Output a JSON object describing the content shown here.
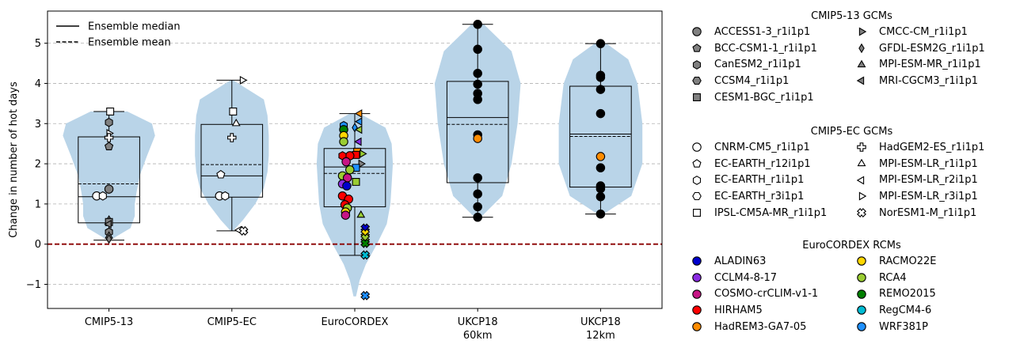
{
  "chart_data": {
    "type": "violin-box-scatter",
    "ylabel": "Change in number of hot days",
    "ylim": [
      -1.6,
      5.8
    ],
    "yticks": [
      -1,
      0,
      1,
      2,
      3,
      4,
      5
    ],
    "ytick_labels": [
      "−1",
      "0",
      "1",
      "2",
      "3",
      "4",
      "5"
    ],
    "grid": "horizontal dashed",
    "zero_line_color": "#8b0000",
    "violin_color": "#b9d4e8",
    "categories": [
      {
        "label": "CMIP5-13",
        "label2": ""
      },
      {
        "label": "CMIP5-EC",
        "label2": ""
      },
      {
        "label": "EuroCORDEX",
        "label2": ""
      },
      {
        "label": "UKCP18",
        "label2": "60km"
      },
      {
        "label": "UKCP18",
        "label2": "12km"
      }
    ],
    "boxes": [
      {
        "q1": 0.53,
        "q3": 2.67,
        "median": 1.18,
        "mean": 1.5,
        "whisker_low": 0.1,
        "whisker_high": 3.3
      },
      {
        "q1": 1.17,
        "q3": 2.98,
        "median": 1.7,
        "mean": 1.98,
        "whisker_low": 0.33,
        "whisker_high": 4.08
      },
      {
        "q1": 0.93,
        "q3": 2.38,
        "median": 1.92,
        "mean": 1.76,
        "whisker_low": -0.28,
        "whisker_high": 3.25
      },
      {
        "q1": 1.53,
        "q3": 4.05,
        "median": 3.15,
        "mean": 2.98,
        "whisker_low": 0.67,
        "whisker_high": 5.47
      },
      {
        "q1": 1.42,
        "q3": 3.93,
        "median": 2.74,
        "mean": 2.68,
        "whisker_low": 0.75,
        "whisker_high": 4.99
      }
    ],
    "violins": [
      {
        "profile": [
          [
            0.1,
            0.02
          ],
          [
            0.4,
            0.35
          ],
          [
            0.7,
            0.42
          ],
          [
            1.0,
            0.42
          ],
          [
            1.3,
            0.45
          ],
          [
            1.7,
            0.5
          ],
          [
            2.2,
            0.62
          ],
          [
            2.7,
            0.75
          ],
          [
            3.0,
            0.7
          ],
          [
            3.3,
            0.3
          ]
        ]
      },
      {
        "profile": [
          [
            0.33,
            0.02
          ],
          [
            0.6,
            0.18
          ],
          [
            1.0,
            0.38
          ],
          [
            1.4,
            0.52
          ],
          [
            1.8,
            0.58
          ],
          [
            2.2,
            0.6
          ],
          [
            2.7,
            0.6
          ],
          [
            3.2,
            0.58
          ],
          [
            3.6,
            0.52
          ],
          [
            4.08,
            0.02
          ]
        ]
      },
      {
        "profile": [
          [
            -1.3,
            0.02
          ],
          [
            -0.9,
            0.08
          ],
          [
            -0.5,
            0.18
          ],
          [
            0.0,
            0.36
          ],
          [
            0.5,
            0.52
          ],
          [
            1.0,
            0.58
          ],
          [
            1.5,
            0.6
          ],
          [
            2.0,
            0.62
          ],
          [
            2.5,
            0.6
          ],
          [
            2.9,
            0.5
          ],
          [
            3.25,
            0.08
          ]
        ]
      },
      {
        "profile": [
          [
            0.67,
            0.05
          ],
          [
            1.2,
            0.4
          ],
          [
            2.0,
            0.55
          ],
          [
            3.0,
            0.65
          ],
          [
            4.0,
            0.7
          ],
          [
            4.8,
            0.55
          ],
          [
            5.47,
            0.1
          ]
        ]
      },
      {
        "profile": [
          [
            0.75,
            0.05
          ],
          [
            1.2,
            0.5
          ],
          [
            2.0,
            0.68
          ],
          [
            3.0,
            0.68
          ],
          [
            4.0,
            0.6
          ],
          [
            4.6,
            0.45
          ],
          [
            4.99,
            0.1
          ]
        ]
      }
    ],
    "points": [
      {
        "group": 0,
        "y": 3.3,
        "dx": 0.02,
        "marker": "square",
        "color": "#ffffff"
      },
      {
        "group": 0,
        "y": 3.03,
        "dx": 0.0,
        "marker": "hexagon",
        "color": "#808080"
      },
      {
        "group": 0,
        "y": 2.76,
        "dx": 0.0,
        "marker": "triangle-right",
        "color": "#ffffff"
      },
      {
        "group": 0,
        "y": 2.65,
        "dx": 0.0,
        "marker": "plus",
        "color": "#ffffff"
      },
      {
        "group": 0,
        "y": 2.43,
        "dx": 0.0,
        "marker": "pentagon",
        "color": "#808080"
      },
      {
        "group": 0,
        "y": 1.37,
        "dx": 0.0,
        "marker": "circle",
        "color": "#808080"
      },
      {
        "group": 0,
        "y": 1.2,
        "dx": -0.2,
        "marker": "circle",
        "color": "#ffffff"
      },
      {
        "group": 0,
        "y": 1.2,
        "dx": -0.1,
        "marker": "hexagon",
        "color": "#ffffff"
      },
      {
        "group": 0,
        "y": 0.6,
        "dx": 0.0,
        "marker": "diamond",
        "color": "#808080"
      },
      {
        "group": 0,
        "y": 0.55,
        "dx": 0.0,
        "marker": "square",
        "color": "#808080"
      },
      {
        "group": 0,
        "y": 0.5,
        "dx": 0.0,
        "marker": "triangle-left",
        "color": "#808080"
      },
      {
        "group": 0,
        "y": 0.3,
        "dx": 0.0,
        "marker": "hexagon",
        "color": "#808080"
      },
      {
        "group": 0,
        "y": 0.2,
        "dx": 0.0,
        "marker": "triangle-up",
        "color": "#808080"
      },
      {
        "group": 0,
        "y": 0.13,
        "dx": 0.0,
        "marker": "diamond",
        "color": "#808080"
      },
      {
        "group": 1,
        "y": 4.08,
        "dx": 0.17,
        "marker": "triangle-right",
        "color": "#ffffff"
      },
      {
        "group": 1,
        "y": 3.3,
        "dx": 0.02,
        "marker": "square",
        "color": "#ffffff"
      },
      {
        "group": 1,
        "y": 3.0,
        "dx": 0.07,
        "marker": "triangle-up",
        "color": "#ffffff"
      },
      {
        "group": 1,
        "y": 2.65,
        "dx": 0.0,
        "marker": "plus",
        "color": "#ffffff"
      },
      {
        "group": 1,
        "y": 1.73,
        "dx": -0.18,
        "marker": "pentagon",
        "color": "#ffffff"
      },
      {
        "group": 1,
        "y": 1.2,
        "dx": -0.2,
        "marker": "circle",
        "color": "#ffffff"
      },
      {
        "group": 1,
        "y": 1.2,
        "dx": -0.11,
        "marker": "hexagon",
        "color": "#ffffff"
      },
      {
        "group": 1,
        "y": 0.35,
        "dx": 0.12,
        "marker": "triangle-left",
        "color": "#ffffff"
      },
      {
        "group": 1,
        "y": 0.33,
        "dx": 0.19,
        "marker": "cross",
        "color": "#ffffff"
      },
      {
        "group": 2,
        "y": 3.25,
        "dx": 0.08,
        "marker": "triangle-left",
        "color": "#ff8c00"
      },
      {
        "group": 2,
        "y": 3.05,
        "dx": 0.08,
        "marker": "triangle-left",
        "color": "#1e90ff"
      },
      {
        "group": 2,
        "y": 2.9,
        "dx": 0.0,
        "marker": "diamond",
        "color": "#1e90ff"
      },
      {
        "group": 2,
        "y": 2.95,
        "dx": -0.18,
        "marker": "hexagon",
        "color": "#1e90ff"
      },
      {
        "group": 2,
        "y": 2.85,
        "dx": -0.18,
        "marker": "circle",
        "color": "#008000"
      },
      {
        "group": 2,
        "y": 2.85,
        "dx": 0.08,
        "marker": "triangle-left",
        "color": "#9acd32"
      },
      {
        "group": 2,
        "y": 2.7,
        "dx": -0.18,
        "marker": "circle",
        "color": "#ffd700"
      },
      {
        "group": 2,
        "y": 2.55,
        "dx": -0.18,
        "marker": "circle",
        "color": "#9acd32"
      },
      {
        "group": 2,
        "y": 2.55,
        "dx": 0.07,
        "marker": "triangle-left",
        "color": "#8a2be2"
      },
      {
        "group": 2,
        "y": 2.3,
        "dx": 0.04,
        "marker": "square",
        "color": "#ff8c00"
      },
      {
        "group": 2,
        "y": 2.25,
        "dx": 0.12,
        "marker": "triangle-right",
        "color": "#9acd32"
      },
      {
        "group": 2,
        "y": 2.22,
        "dx": 0.02,
        "marker": "square",
        "color": "#ff0000"
      },
      {
        "group": 2,
        "y": 2.2,
        "dx": -0.08,
        "marker": "circle",
        "color": "#ff0000"
      },
      {
        "group": 2,
        "y": 2.2,
        "dx": -0.2,
        "marker": "hexagon",
        "color": "#ff0000"
      },
      {
        "group": 2,
        "y": 2.05,
        "dx": -0.14,
        "marker": "circle",
        "color": "#c71585"
      },
      {
        "group": 2,
        "y": 2.0,
        "dx": 0.1,
        "marker": "triangle-right",
        "color": "#808080"
      },
      {
        "group": 2,
        "y": 1.9,
        "dx": 0.02,
        "marker": "square",
        "color": "#1e90ff"
      },
      {
        "group": 2,
        "y": 1.85,
        "dx": -0.08,
        "marker": "circle",
        "color": "#9acd32"
      },
      {
        "group": 2,
        "y": 1.7,
        "dx": -0.2,
        "marker": "circle",
        "color": "#9acd32"
      },
      {
        "group": 2,
        "y": 1.65,
        "dx": -0.12,
        "marker": "circle",
        "color": "#c71585"
      },
      {
        "group": 2,
        "y": 1.55,
        "dx": 0.02,
        "marker": "square",
        "color": "#9acd32"
      },
      {
        "group": 2,
        "y": 1.5,
        "dx": -0.2,
        "marker": "circle",
        "color": "#8a2be2"
      },
      {
        "group": 2,
        "y": 1.45,
        "dx": -0.13,
        "marker": "circle",
        "color": "#0000cd"
      },
      {
        "group": 2,
        "y": 1.2,
        "dx": -0.2,
        "marker": "circle",
        "color": "#ff0000"
      },
      {
        "group": 2,
        "y": 1.12,
        "dx": -0.1,
        "marker": "circle",
        "color": "#ff0000"
      },
      {
        "group": 2,
        "y": 0.98,
        "dx": -0.16,
        "marker": "circle",
        "color": "#ff0000"
      },
      {
        "group": 2,
        "y": 0.9,
        "dx": -0.12,
        "marker": "circle",
        "color": "#9acd32"
      },
      {
        "group": 2,
        "y": 0.8,
        "dx": -0.15,
        "marker": "circle",
        "color": "#ffd700"
      },
      {
        "group": 2,
        "y": 0.72,
        "dx": 0.1,
        "marker": "triangle-up",
        "color": "#9acd32"
      },
      {
        "group": 2,
        "y": 0.72,
        "dx": -0.15,
        "marker": "circle",
        "color": "#c71585"
      },
      {
        "group": 2,
        "y": 0.4,
        "dx": 0.17,
        "marker": "cross",
        "color": "#0000cd"
      },
      {
        "group": 2,
        "y": 0.27,
        "dx": 0.17,
        "marker": "cross",
        "color": "#ffd700"
      },
      {
        "group": 2,
        "y": 0.15,
        "dx": 0.17,
        "marker": "cross",
        "color": "#9acd32"
      },
      {
        "group": 2,
        "y": 0.02,
        "dx": 0.17,
        "marker": "cross",
        "color": "#008000"
      },
      {
        "group": 2,
        "y": -0.27,
        "dx": 0.17,
        "marker": "cross",
        "color": "#00bcd4"
      },
      {
        "group": 2,
        "y": -1.28,
        "dx": 0.17,
        "marker": "cross",
        "color": "#1e90ff"
      },
      {
        "group": 3,
        "y": 5.47,
        "dx": 0.0,
        "marker": "circle",
        "color": "#000000"
      },
      {
        "group": 3,
        "y": 4.85,
        "dx": 0.0,
        "marker": "circle",
        "color": "#000000"
      },
      {
        "group": 3,
        "y": 4.25,
        "dx": 0.0,
        "marker": "circle",
        "color": "#000000"
      },
      {
        "group": 3,
        "y": 3.98,
        "dx": 0.0,
        "marker": "circle",
        "color": "#000000"
      },
      {
        "group": 3,
        "y": 3.75,
        "dx": 0.0,
        "marker": "circle",
        "color": "#000000"
      },
      {
        "group": 3,
        "y": 3.6,
        "dx": 0.0,
        "marker": "circle",
        "color": "#000000"
      },
      {
        "group": 3,
        "y": 2.72,
        "dx": 0.0,
        "marker": "circle",
        "color": "#000000"
      },
      {
        "group": 3,
        "y": 2.63,
        "dx": 0.0,
        "marker": "circle",
        "color": "#ff8c00"
      },
      {
        "group": 3,
        "y": 1.65,
        "dx": 0.0,
        "marker": "circle",
        "color": "#000000"
      },
      {
        "group": 3,
        "y": 1.25,
        "dx": 0.0,
        "marker": "circle",
        "color": "#000000"
      },
      {
        "group": 3,
        "y": 0.93,
        "dx": 0.0,
        "marker": "circle",
        "color": "#000000"
      },
      {
        "group": 3,
        "y": 0.67,
        "dx": 0.0,
        "marker": "circle",
        "color": "#000000"
      },
      {
        "group": 4,
        "y": 4.99,
        "dx": 0.0,
        "marker": "circle",
        "color": "#000000"
      },
      {
        "group": 4,
        "y": 4.2,
        "dx": 0.0,
        "marker": "circle",
        "color": "#000000"
      },
      {
        "group": 4,
        "y": 4.15,
        "dx": 0.0,
        "marker": "circle",
        "color": "#000000"
      },
      {
        "group": 4,
        "y": 3.85,
        "dx": 0.0,
        "marker": "circle",
        "color": "#000000"
      },
      {
        "group": 4,
        "y": 3.25,
        "dx": 0.0,
        "marker": "circle",
        "color": "#000000"
      },
      {
        "group": 4,
        "y": 2.18,
        "dx": 0.0,
        "marker": "circle",
        "color": "#ff8c00"
      },
      {
        "group": 4,
        "y": 1.9,
        "dx": 0.0,
        "marker": "circle",
        "color": "#000000"
      },
      {
        "group": 4,
        "y": 1.45,
        "dx": 0.0,
        "marker": "circle",
        "color": "#000000"
      },
      {
        "group": 4,
        "y": 1.38,
        "dx": 0.0,
        "marker": "circle",
        "color": "#000000"
      },
      {
        "group": 4,
        "y": 1.18,
        "dx": 0.0,
        "marker": "circle",
        "color": "#000000"
      },
      {
        "group": 4,
        "y": 0.75,
        "dx": 0.0,
        "marker": "circle",
        "color": "#000000"
      }
    ],
    "line_legend": {
      "placement": "top-left",
      "entries": [
        {
          "label": "Ensemble median",
          "style": "solid"
        },
        {
          "label": "Ensemble mean",
          "style": "dashed"
        }
      ]
    }
  },
  "legends": [
    {
      "id": "gcm13",
      "title": "CMIP5-13 GCMs",
      "items": [
        {
          "label": "ACCESS1-3_r1i1p1",
          "marker": "circle",
          "color": "#808080"
        },
        {
          "label": "CMCC-CM_r1i1p1",
          "marker": "triangle-right",
          "color": "#808080"
        },
        {
          "label": "BCC-CSM1-1_r1i1p1",
          "marker": "pentagon",
          "color": "#808080"
        },
        {
          "label": "GFDL-ESM2G_r1i1p1",
          "marker": "diamond",
          "color": "#808080"
        },
        {
          "label": "CanESM2_r1i1p1",
          "marker": "hexagon",
          "color": "#808080"
        },
        {
          "label": "MPI-ESM-MR_r1i1p1",
          "marker": "triangle-up",
          "color": "#808080"
        },
        {
          "label": "CCSM4_r1i1p1",
          "marker": "hexagon2",
          "color": "#808080"
        },
        {
          "label": "MRI-CGCM3_r1i1p1",
          "marker": "triangle-left",
          "color": "#808080"
        },
        {
          "label": "CESM1-BGC_r1i1p1",
          "marker": "square",
          "color": "#808080"
        }
      ]
    },
    {
      "id": "gcmec",
      "title": "CMIP5-EC GCMs",
      "items": [
        {
          "label": "CNRM-CM5_r1i1p1",
          "marker": "circle",
          "color": "#ffffff"
        },
        {
          "label": "HadGEM2-ES_r1i1p1",
          "marker": "plus",
          "color": "#ffffff"
        },
        {
          "label": "EC-EARTH_r12i1p1",
          "marker": "pentagon",
          "color": "#ffffff"
        },
        {
          "label": "MPI-ESM-LR_r1i1p1",
          "marker": "triangle-up",
          "color": "#ffffff"
        },
        {
          "label": "EC-EARTH_r1i1p1",
          "marker": "hexagon",
          "color": "#ffffff"
        },
        {
          "label": "MPI-ESM-LR_r2i1p1",
          "marker": "triangle-left",
          "color": "#ffffff"
        },
        {
          "label": "EC-EARTH_r3i1p1",
          "marker": "hexagon2",
          "color": "#ffffff"
        },
        {
          "label": "MPI-ESM-LR_r3i1p1",
          "marker": "triangle-right",
          "color": "#ffffff"
        },
        {
          "label": "IPSL-CM5A-MR_r1i1p1",
          "marker": "square",
          "color": "#ffffff"
        },
        {
          "label": "NorESM1-M_r1i1p1",
          "marker": "cross",
          "color": "#ffffff"
        }
      ]
    },
    {
      "id": "rcm",
      "title": "EuroCORDEX RCMs",
      "items": [
        {
          "label": "ALADIN63",
          "marker": "circle",
          "color": "#0000cd"
        },
        {
          "label": "RACMO22E",
          "marker": "circle",
          "color": "#ffd700"
        },
        {
          "label": "CCLM4-8-17",
          "marker": "circle",
          "color": "#8a2be2"
        },
        {
          "label": "RCA4",
          "marker": "circle",
          "color": "#9acd32"
        },
        {
          "label": "COSMO-crCLIM-v1-1",
          "marker": "circle",
          "color": "#c71585"
        },
        {
          "label": "REMO2015",
          "marker": "circle",
          "color": "#008000"
        },
        {
          "label": "HIRHAM5",
          "marker": "circle",
          "color": "#ff0000"
        },
        {
          "label": "RegCM4-6",
          "marker": "circle",
          "color": "#00bcd4"
        },
        {
          "label": "HadREM3-GA7-05",
          "marker": "circle",
          "color": "#ff8c00"
        },
        {
          "label": "WRF381P",
          "marker": "circle",
          "color": "#1e90ff"
        }
      ]
    }
  ]
}
